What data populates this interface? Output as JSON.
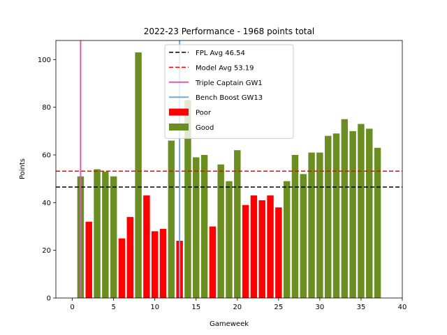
{
  "chart_data": {
    "type": "bar",
    "title": "2022-23 Performance - 1968 points total",
    "xlabel": "Gameweek",
    "ylabel": "Points",
    "xlim": [
      -2,
      40
    ],
    "ylim": [
      0,
      108
    ],
    "xticks": [
      0,
      5,
      10,
      15,
      20,
      25,
      30,
      35,
      40
    ],
    "yticks": [
      0,
      20,
      40,
      60,
      80,
      100
    ],
    "grid": false,
    "legend_position": "top-center",
    "x": [
      1,
      2,
      3,
      4,
      5,
      6,
      7,
      8,
      9,
      10,
      11,
      12,
      13,
      14,
      15,
      16,
      17,
      18,
      19,
      20,
      21,
      22,
      23,
      24,
      25,
      26,
      27,
      28,
      29,
      30,
      31,
      32,
      33,
      34,
      35,
      36,
      37
    ],
    "values": [
      51,
      32,
      54,
      53,
      51,
      25,
      34,
      103,
      43,
      28,
      29,
      66,
      24,
      83,
      59,
      60,
      30,
      56,
      49,
      62,
      39,
      43,
      41,
      43,
      38,
      49,
      60,
      52,
      61,
      61,
      68,
      69,
      75,
      70,
      73,
      71,
      63
    ],
    "categories_per_bar": [
      "Good",
      "Poor",
      "Good",
      "Good",
      "Good",
      "Poor",
      "Poor",
      "Good",
      "Poor",
      "Poor",
      "Poor",
      "Good",
      "Poor",
      "Good",
      "Good",
      "Good",
      "Poor",
      "Good",
      "Good",
      "Good",
      "Poor",
      "Poor",
      "Poor",
      "Poor",
      "Poor",
      "Good",
      "Good",
      "Good",
      "Good",
      "Good",
      "Good",
      "Good",
      "Good",
      "Good",
      "Good",
      "Good",
      "Good"
    ],
    "bar_colors": {
      "Poor": "#ff0000",
      "Good": "#6b8e23"
    },
    "hlines": [
      {
        "name": "FPL Avg 46.54",
        "y": 46.54,
        "color": "#000000",
        "style": "dashed"
      },
      {
        "name": "Model Avg 53.19",
        "y": 53.19,
        "color": "#ff0000",
        "style": "dashed"
      }
    ],
    "vlines": [
      {
        "name": "Triple Captain GW1",
        "x": 1,
        "color": "#d45fb6",
        "style": "solid"
      },
      {
        "name": "Bench Boost GW13",
        "x": 13,
        "color": "#77a8d6",
        "style": "solid"
      }
    ],
    "legend": [
      {
        "label": "FPL Avg 46.54",
        "kind": "line-dashed",
        "color": "#000000"
      },
      {
        "label": "Model Avg 53.19",
        "kind": "line-dashed",
        "color": "#ff0000"
      },
      {
        "label": "Triple Captain GW1",
        "kind": "line",
        "color": "#d45fb6"
      },
      {
        "label": "Bench Boost GW13",
        "kind": "line",
        "color": "#77a8d6"
      },
      {
        "label": "Poor",
        "kind": "patch",
        "color": "#ff0000"
      },
      {
        "label": "Good",
        "kind": "patch",
        "color": "#6b8e23"
      }
    ]
  }
}
